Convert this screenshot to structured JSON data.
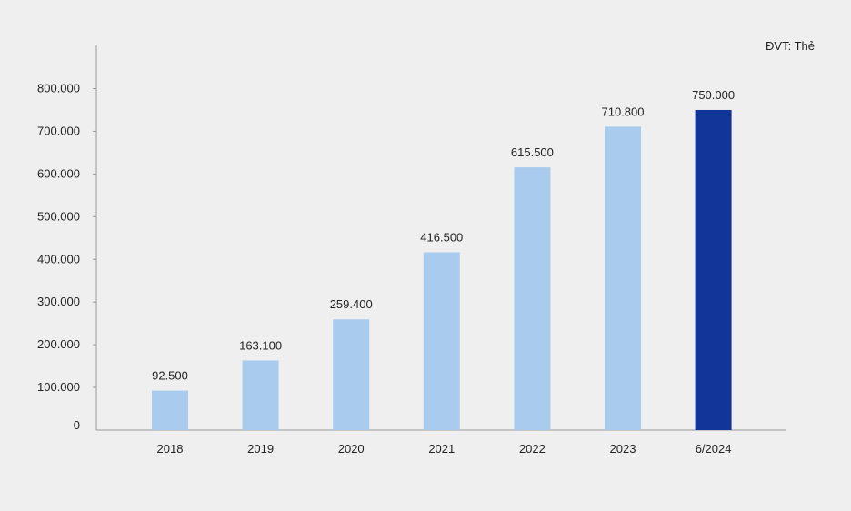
{
  "chart_data": {
    "type": "bar",
    "unit_label": "ĐVT: Thẻ",
    "categories": [
      "2018",
      "2019",
      "2020",
      "2021",
      "2022",
      "2023",
      "6/2024"
    ],
    "values": [
      92500,
      163100,
      259400,
      416500,
      615500,
      710800,
      750000
    ],
    "value_labels": [
      "92.500",
      "163.100",
      "259.400",
      "416.500",
      "615.500",
      "710.800",
      "750.000"
    ],
    "y_ticks": [
      0,
      100000,
      200000,
      300000,
      400000,
      500000,
      600000,
      700000,
      800000
    ],
    "y_tick_labels": [
      "0",
      "100.000",
      "200.000",
      "300.000",
      "400.000",
      "500.000",
      "600.000",
      "700.000",
      "800.000"
    ],
    "ylim": [
      0,
      800000
    ],
    "grid": false,
    "colors": {
      "bar": "#a9ccee",
      "highlight_bar": "#12359a",
      "axis": "#999999",
      "text": "#222222"
    },
    "highlight_index": 6
  }
}
